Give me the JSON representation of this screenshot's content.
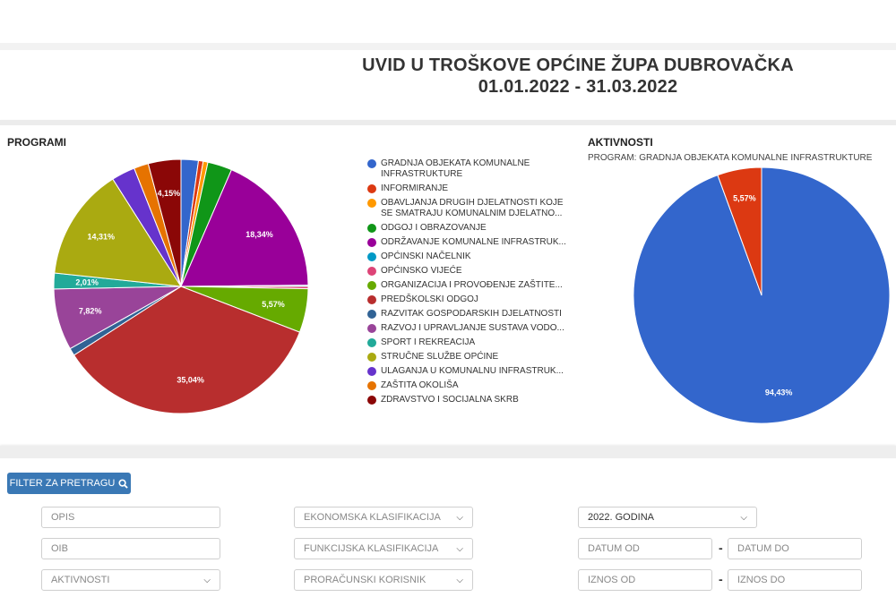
{
  "header": {
    "title": "UVID U TROŠKOVE OPĆINE ŽUPA DUBROVAČKA",
    "date_range": "01.01.2022 - 31.03.2022"
  },
  "programi": {
    "title": "PROGRAMI",
    "legend": [
      "GRADNJA OBJEKATA KOMUNALNE INFRASTRUKTURE",
      "INFORMIRANJE",
      "OBAVLJANJA DRUGIH DJELATNOSTI KOJE SE SMATRAJU KOMUNALNIM DJELATNO...",
      "ODGOJ I OBRAZOVANJE",
      "ODRŽAVANJE KOMUNALNE INFRASTRUK...",
      "OPĆINSKI NAČELNIK",
      "OPĆINSKO VIJEĆE",
      "ORGANIZACIJA I PROVOĐENJE ZAŠTITE...",
      "PREDŠKOLSKI ODGOJ",
      "RAZVITAK GOSPODARSKIH DJELATNOSTI",
      "RAZVOJ I UPRAVLJANJE SUSTAVA VODO...",
      "SPORT I REKREACIJA",
      "STRUČNE SLUŽBE OPĆINE",
      "ULAGANJA U KOMUNALNU INFRASTRUK...",
      "ZAŠTITA OKOLIŠA",
      "ZDRAVSTVO I SOCIJALNA SKRB"
    ]
  },
  "aktivnosti": {
    "title": "AKTIVNOSTI",
    "subtitle": "PROGRAM:  GRADNJA OBJEKATA KOMUNALNE INFRASTRUKTURE"
  },
  "chart_data": [
    {
      "type": "pie",
      "title": "PROGRAMI",
      "slices": [
        {
          "name": "GRADNJA OBJEKATA KOMUNALNE INFRASTRUKTURE",
          "value": 2.2,
          "color": "#3366cc",
          "label": ""
        },
        {
          "name": "INFORMIRANJE",
          "value": 0.6,
          "color": "#dc3912",
          "label": ""
        },
        {
          "name": "OBAVLJANJA DRUGIH DJELATNOSTI KOJE SE SMATRAJU KOMUNALNIM DJELATNO...",
          "value": 0.6,
          "color": "#ff9900",
          "label": ""
        },
        {
          "name": "ODGOJ I OBRAZOVANJE",
          "value": 3.1,
          "color": "#109618",
          "label": ""
        },
        {
          "name": "ODRŽAVANJE KOMUNALNE INFRASTRUK...",
          "value": 18.34,
          "color": "#990099",
          "label": "18,34%"
        },
        {
          "name": "OPĆINSKI NAČELNIK",
          "value": 0.15,
          "color": "#0099c6",
          "label": ""
        },
        {
          "name": "OPĆINSKO VIJEĆE",
          "value": 0.3,
          "color": "#dd4477",
          "label": ""
        },
        {
          "name": "ORGANIZACIJA I PROVOĐENJE ZAŠTITE...",
          "value": 5.57,
          "color": "#66aa00",
          "label": "5,57%"
        },
        {
          "name": "PREDŠKOLSKI ODGOJ",
          "value": 35.04,
          "color": "#b82e2e",
          "label": "35,04%"
        },
        {
          "name": "RAZVITAK GOSPODARSKIH DJELATNOSTI",
          "value": 0.95,
          "color": "#316395",
          "label": ""
        },
        {
          "name": "RAZVOJ I UPRAVLJANJE SUSTAVA VODO...",
          "value": 7.82,
          "color": "#994499",
          "label": "7,82%"
        },
        {
          "name": "SPORT I REKREACIJA",
          "value": 2.01,
          "color": "#22aa99",
          "label": "2,01%"
        },
        {
          "name": "STRUČNE SLUŽBE OPĆINE",
          "value": 14.31,
          "color": "#aaaa11",
          "label": "14,31%"
        },
        {
          "name": "ULAGANJA U KOMUNALNU INFRASTRUK...",
          "value": 3.0,
          "color": "#6633cc",
          "label": ""
        },
        {
          "name": "ZAŠTITA OKOLIŠA",
          "value": 1.85,
          "color": "#e67300",
          "label": ""
        },
        {
          "name": "ZDRAVSTVO I SOCIJALNA SKRB",
          "value": 4.15,
          "color": "#8b0707",
          "label": "4,15%"
        }
      ],
      "legend_position": "right"
    },
    {
      "type": "pie",
      "title": "AKTIVNOSTI",
      "slices": [
        {
          "name": "",
          "value": 94.43,
          "color": "#3366cc",
          "label": "94,43%"
        },
        {
          "name": "",
          "value": 5.57,
          "color": "#dc3912",
          "label": "5,57%"
        }
      ]
    }
  ],
  "filter": {
    "button_label": "FILTER ZA PRETRAGU",
    "opis_placeholder": "OPIS",
    "oib_placeholder": "OIB",
    "aktivnosti_select": "AKTIVNOSTI",
    "ekonomska_select": "EKONOMSKA KLASIFIKACIJA",
    "funkcijska_select": "FUNKCIJSKA KLASIFIKACIJA",
    "proracunski_select": "PRORAČUNSKI KORISNIK",
    "godina_select": "2022. GODINA",
    "datum_od_placeholder": "DATUM OD",
    "datum_do_placeholder": "DATUM DO",
    "iznos_od_placeholder": "IZNOS OD",
    "iznos_do_placeholder": "IZNOS DO",
    "dash": "-"
  },
  "icons": {
    "search": "search-icon",
    "select": "chevron-down-icon"
  }
}
